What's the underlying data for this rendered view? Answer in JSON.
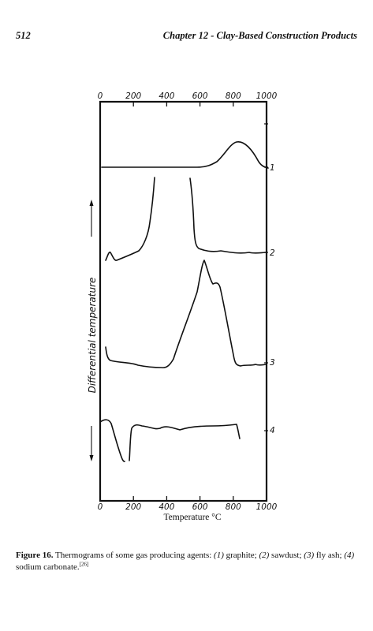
{
  "header": {
    "page_number": "512",
    "chapter_title": "Chapter 12 - Clay-Based Construction Products"
  },
  "figure": {
    "top_tick_labels": [
      "0",
      "200",
      "400",
      "600",
      "800",
      "1000"
    ],
    "bottom_tick_labels": [
      "0",
      "200",
      "400",
      "600",
      "800",
      "1000"
    ],
    "y_axis_label": "Differential temperature",
    "x_axis_label": "Temperature °C",
    "curve_labels": [
      "1",
      "2",
      "3",
      "4"
    ]
  },
  "caption": {
    "label": "Figure 16.",
    "text_1": " Thermograms of some gas producing agents: ",
    "i1": "(1)",
    "t1": " graphite; ",
    "i2": "(2)",
    "t2": " sawdust; ",
    "i3": "(3)",
    "t3": " fly ash; ",
    "i4": "(4)",
    "t4": " sodium carbonate.",
    "ref": "[26]"
  },
  "chart_data": {
    "type": "line",
    "xlabel": "Temperature °C",
    "ylabel": "Differential temperature",
    "xlim": [
      0,
      1000
    ],
    "xticks": [
      0,
      200,
      400,
      600,
      800,
      1000
    ],
    "series": [
      {
        "name": "1",
        "x": [
          0,
          100,
          200,
          300,
          400,
          500,
          600,
          650,
          700,
          750,
          800,
          850,
          900,
          950,
          1000
        ],
        "y": [
          0,
          0,
          0,
          0,
          0,
          0,
          0,
          0.3,
          1,
          2.5,
          5,
          4.5,
          3,
          1.2,
          0.8
        ]
      },
      {
        "name": "2",
        "x": [
          40,
          50,
          70,
          100,
          150,
          200,
          250,
          300,
          330,
          350,
          530,
          550,
          560,
          600,
          700,
          800,
          900,
          1000
        ],
        "y": [
          0,
          2,
          0.5,
          0,
          1,
          1.5,
          3,
          7,
          15,
          50,
          50,
          10,
          2,
          1,
          0.5,
          0.5,
          0.5,
          0.5
        ]
      },
      {
        "name": "3",
        "x": [
          40,
          60,
          100,
          200,
          300,
          400,
          500,
          600,
          630,
          650,
          700,
          750,
          800,
          820,
          900,
          950,
          1000
        ],
        "y": [
          2,
          0,
          0,
          -0.5,
          -0.8,
          -1,
          3,
          10,
          15,
          14,
          12,
          9,
          3,
          0,
          0,
          0,
          0
        ]
      },
      {
        "name": "4",
        "x": [
          20,
          40,
          70,
          100,
          130,
          150,
          170,
          180,
          200,
          300,
          400,
          500,
          600,
          700,
          800,
          820
        ],
        "y": [
          0,
          0,
          -1,
          -4,
          -7,
          -9,
          -7,
          -1,
          0,
          -0.3,
          0,
          -0.2,
          0,
          0,
          0,
          -2
        ]
      }
    ]
  }
}
